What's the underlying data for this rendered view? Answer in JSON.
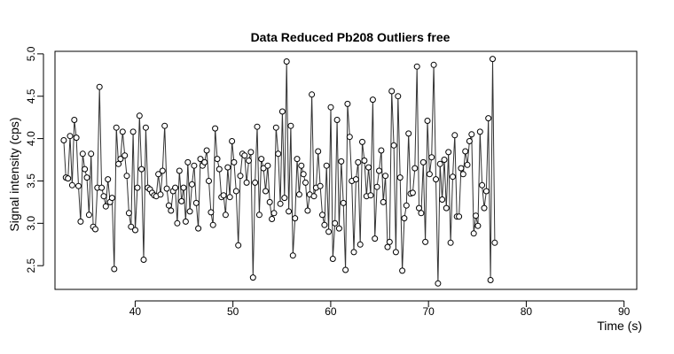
{
  "chart_data": {
    "type": "line",
    "title": "Data Reduced Pb208 Outliers free",
    "xlabel": "Time (s)",
    "ylabel": "Signal intensity (cps)",
    "xlim": [
      31.8,
      91.3
    ],
    "ylim": [
      2.22,
      5.03
    ],
    "x_ticks": [
      40,
      50,
      60,
      70,
      80,
      90
    ],
    "y_ticks": [
      2.5,
      3.0,
      3.5,
      4.0,
      4.5,
      5.0
    ],
    "x_tick_labels": [
      "40",
      "50",
      "60",
      "70",
      "80",
      "90"
    ],
    "y_tick_labels": [
      "2.5",
      "3.0",
      "3.5",
      "4.0",
      "4.5",
      "5.0"
    ],
    "series": [
      {
        "style": "line with open circle markers",
        "x_start": 32.7,
        "x_step": 0.215,
        "values": [
          3.98,
          3.54,
          3.53,
          4.03,
          3.45,
          4.22,
          4.01,
          3.44,
          3.02,
          3.82,
          3.64,
          3.54,
          3.1,
          3.82,
          2.96,
          2.93,
          3.42,
          4.61,
          3.42,
          3.32,
          3.2,
          3.52,
          3.25,
          3.3,
          2.46,
          4.13,
          3.7,
          3.76,
          4.08,
          3.8,
          3.56,
          3.12,
          2.96,
          4.08,
          2.92,
          3.42,
          4.27,
          3.64,
          2.57,
          4.13,
          3.42,
          3.4,
          3.36,
          3.33,
          3.32,
          3.58,
          3.34,
          3.62,
          4.15,
          3.41,
          3.21,
          3.15,
          3.38,
          3.42,
          3.0,
          3.62,
          3.26,
          3.42,
          3.02,
          3.72,
          3.14,
          3.46,
          3.68,
          3.24,
          2.94,
          3.76,
          3.68,
          3.72,
          3.86,
          3.5,
          3.13,
          2.98,
          4.12,
          3.76,
          3.64,
          3.31,
          3.33,
          3.1,
          3.66,
          3.31,
          3.97,
          3.72,
          3.38,
          2.74,
          3.56,
          3.82,
          3.8,
          3.48,
          3.74,
          3.84,
          2.36,
          3.48,
          4.14,
          3.1,
          3.76,
          3.65,
          3.38,
          3.68,
          3.25,
          3.05,
          3.12,
          4.13,
          3.82,
          3.23,
          4.32,
          3.3,
          4.91,
          3.14,
          4.15,
          2.62,
          3.06,
          3.76,
          3.34,
          3.68,
          3.58,
          3.48,
          3.15,
          3.34,
          4.52,
          3.32,
          3.42,
          3.85,
          3.44,
          3.1,
          2.98,
          3.68,
          2.9,
          4.37,
          2.58,
          3.0,
          4.22,
          2.94,
          3.73,
          3.24,
          2.45,
          4.41,
          4.02,
          3.5,
          2.66,
          3.52,
          3.72,
          2.75,
          3.96,
          3.74,
          3.32,
          3.66,
          3.33,
          4.46,
          2.82,
          3.43,
          3.62,
          3.86,
          3.25,
          3.56,
          2.72,
          2.78,
          4.56,
          3.92,
          2.66,
          4.5,
          3.54,
          2.44,
          3.06,
          3.21,
          4.06,
          3.35,
          3.36,
          3.65,
          4.85,
          3.18,
          3.12,
          3.72,
          2.78,
          4.21,
          3.58,
          3.78,
          4.87,
          3.52,
          2.29,
          3.7,
          3.28,
          3.75,
          3.18,
          3.84,
          2.77,
          3.55,
          4.04,
          3.08,
          3.08,
          3.65,
          3.58,
          3.85,
          3.69,
          3.97,
          4.05,
          2.88,
          3.09,
          2.97,
          4.08,
          3.45,
          3.18,
          3.38,
          4.24,
          2.33,
          4.94,
          2.77
        ]
      }
    ]
  }
}
